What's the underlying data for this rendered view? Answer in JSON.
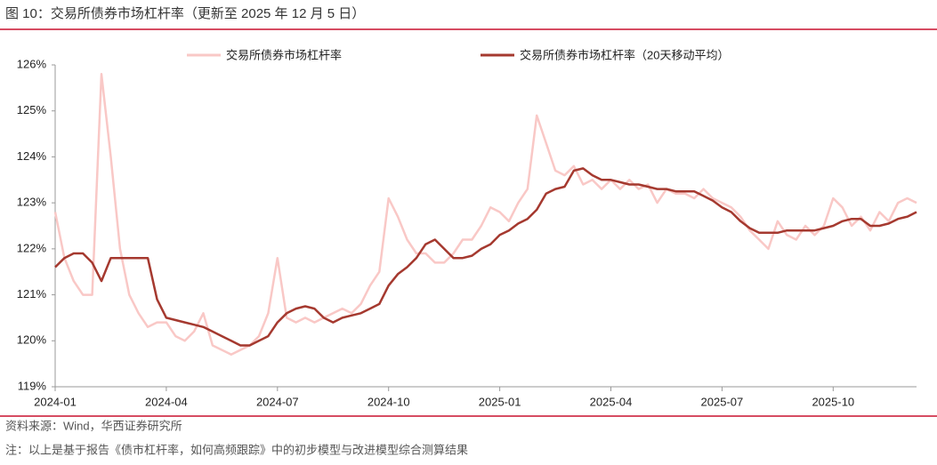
{
  "chart_data": {
    "type": "line",
    "title": "图 10：交易所债券市场杠杆率（更新至 2025 年 12 月 5 日）",
    "source": "资料来源：Wind，华西证券研究所",
    "note": "注：以上是基于报告《债市杠杆率，如何高频跟踪》中的初步模型与改进模型综合测算结果",
    "categories": [
      "2024-01",
      null,
      null,
      null,
      null,
      null,
      null,
      null,
      null,
      null,
      null,
      null,
      "2024-04",
      null,
      null,
      null,
      null,
      null,
      null,
      null,
      null,
      null,
      null,
      null,
      "2024-07",
      null,
      null,
      null,
      null,
      null,
      null,
      null,
      null,
      null,
      null,
      null,
      "2024-10",
      null,
      null,
      null,
      null,
      null,
      null,
      null,
      null,
      null,
      null,
      null,
      "2025-01",
      null,
      null,
      null,
      null,
      null,
      null,
      null,
      null,
      null,
      null,
      null,
      "2025-04",
      null,
      null,
      null,
      null,
      null,
      null,
      null,
      null,
      null,
      null,
      null,
      "2025-07",
      null,
      null,
      null,
      null,
      null,
      null,
      null,
      null,
      null,
      null,
      null,
      "2025-10",
      null,
      null,
      null,
      null,
      null,
      null,
      null,
      null,
      null
    ],
    "series": [
      {
        "name": "交易所债券市场杠杆率",
        "color": "#f9c8c6",
        "width": 2.5,
        "values": [
          122.8,
          121.8,
          121.3,
          121.0,
          121.0,
          125.8,
          124.0,
          122.0,
          121.0,
          120.6,
          120.3,
          120.4,
          120.4,
          120.1,
          120.0,
          120.2,
          120.6,
          119.9,
          119.8,
          119.7,
          119.8,
          119.9,
          120.1,
          120.6,
          121.8,
          120.5,
          120.4,
          120.5,
          120.4,
          120.5,
          120.6,
          120.7,
          120.6,
          120.8,
          121.2,
          121.5,
          123.1,
          122.7,
          122.2,
          121.9,
          121.9,
          121.7,
          121.7,
          121.9,
          122.2,
          122.2,
          122.5,
          122.9,
          122.8,
          122.6,
          123.0,
          123.3,
          124.9,
          124.3,
          123.7,
          123.6,
          123.8,
          123.4,
          123.5,
          123.3,
          123.5,
          123.3,
          123.5,
          123.3,
          123.4,
          123.0,
          123.3,
          123.2,
          123.2,
          123.1,
          123.3,
          123.1,
          123.0,
          122.9,
          122.7,
          122.4,
          122.2,
          122.0,
          122.6,
          122.3,
          122.2,
          122.5,
          122.3,
          122.5,
          123.1,
          122.9,
          122.5,
          122.7,
          122.4,
          122.8,
          122.6,
          123.0,
          123.1,
          123.0
        ]
      },
      {
        "name": "交易所债券市场杠杆率（20天移动平均）",
        "color": "#a5392f",
        "width": 2.5,
        "values": [
          121.6,
          121.8,
          121.9,
          121.9,
          121.7,
          121.3,
          121.8,
          121.8,
          121.8,
          121.8,
          121.8,
          120.9,
          120.5,
          120.45,
          120.4,
          120.35,
          120.3,
          120.2,
          120.1,
          120.0,
          119.9,
          119.9,
          120.0,
          120.1,
          120.4,
          120.6,
          120.7,
          120.75,
          120.7,
          120.5,
          120.4,
          120.5,
          120.55,
          120.6,
          120.7,
          120.8,
          121.2,
          121.45,
          121.6,
          121.8,
          122.1,
          122.2,
          122.0,
          121.8,
          121.8,
          121.85,
          122.0,
          122.1,
          122.3,
          122.4,
          122.55,
          122.65,
          122.85,
          123.2,
          123.3,
          123.35,
          123.7,
          123.75,
          123.6,
          123.5,
          123.5,
          123.45,
          123.4,
          123.4,
          123.35,
          123.3,
          123.3,
          123.25,
          123.25,
          123.25,
          123.15,
          123.05,
          122.9,
          122.8,
          122.6,
          122.45,
          122.35,
          122.35,
          122.35,
          122.4,
          122.4,
          122.4,
          122.4,
          122.45,
          122.5,
          122.6,
          122.65,
          122.65,
          122.5,
          122.5,
          122.55,
          122.65,
          122.7,
          122.8
        ]
      }
    ],
    "ylim": [
      119,
      126
    ],
    "yticks": [
      {
        "value": 119,
        "label": "119%"
      },
      {
        "value": 120,
        "label": "120%"
      },
      {
        "value": 121,
        "label": "121%"
      },
      {
        "value": 122,
        "label": "122%"
      },
      {
        "value": 123,
        "label": "123%"
      },
      {
        "value": 124,
        "label": "124%"
      },
      {
        "value": 125,
        "label": "125%"
      },
      {
        "value": 126,
        "label": "126%"
      }
    ],
    "grid": false
  }
}
